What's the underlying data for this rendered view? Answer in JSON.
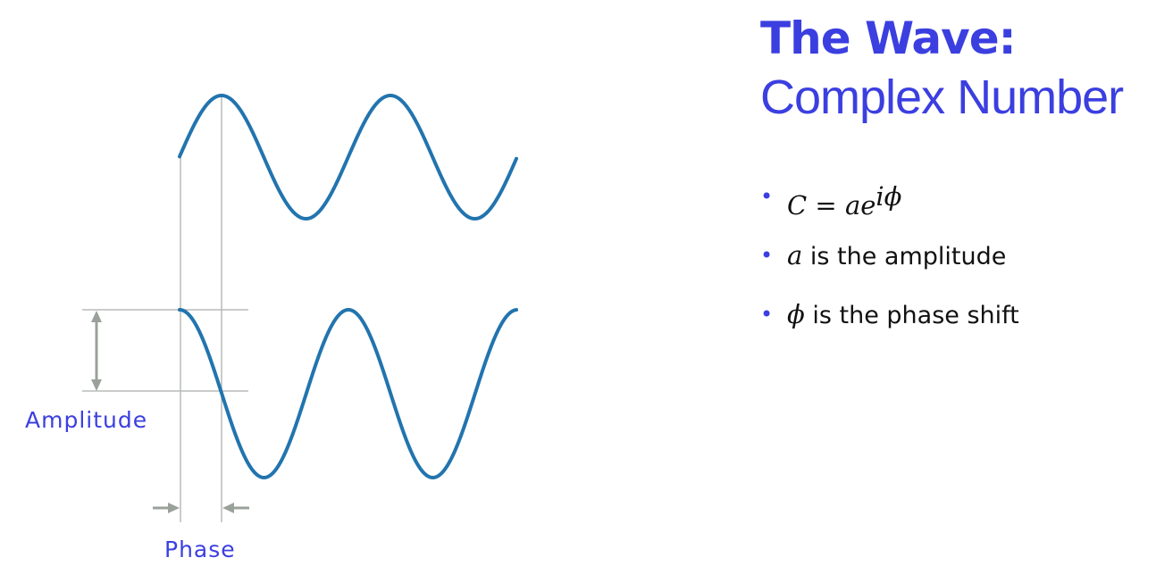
{
  "title": {
    "line1": "The Wave:",
    "line2": "Complex Number"
  },
  "diagram": {
    "amplitude_label": "Amplitude",
    "phase_label": "Phase",
    "colors": {
      "wave": "#2274ae",
      "guide": "#b8bcb8",
      "arrow": "#9aa19a",
      "label": "#3b3fe0"
    }
  },
  "bullets": [
    {
      "math_lhs": "C",
      "math_eq": " = ",
      "math_base": "ae",
      "math_sup": "iϕ"
    },
    {
      "math": "a",
      "text": " is the amplitude"
    },
    {
      "math": "ϕ",
      "text": " is the phase shift"
    }
  ]
}
